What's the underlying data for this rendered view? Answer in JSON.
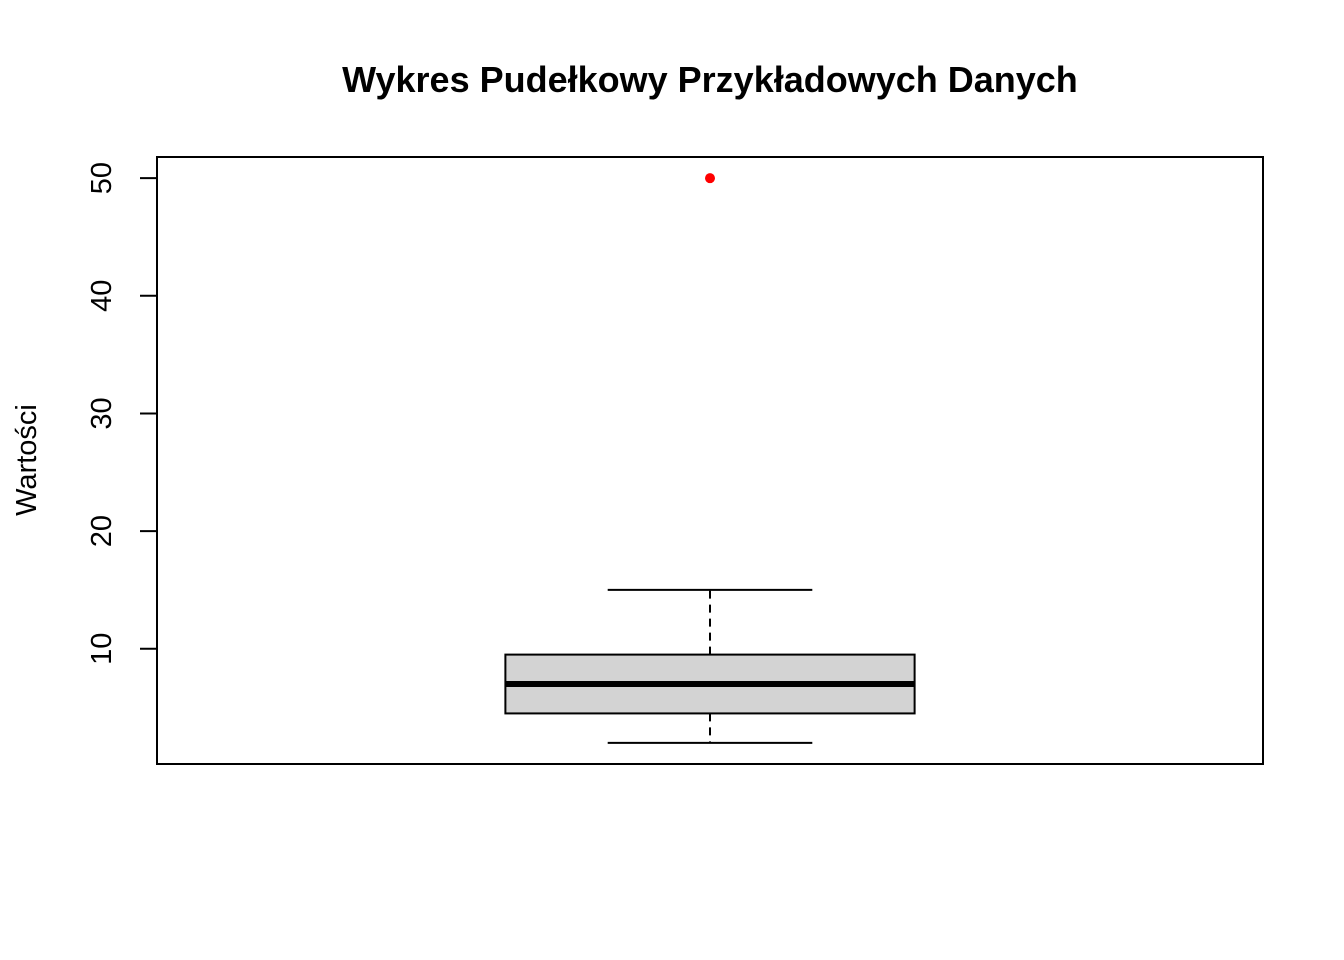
{
  "chart_data": {
    "type": "boxplot",
    "title": "Wykres Pudełkowy Przykładowych Danych",
    "xlabel": "",
    "ylabel": "Wartości",
    "ylim": [
      0.2,
      51.8
    ],
    "yticks": [
      10,
      20,
      30,
      40,
      50
    ],
    "ytick_labels": [
      "10",
      "20",
      "30",
      "40",
      "50"
    ],
    "grid": false,
    "series": [
      {
        "min": 2,
        "q1": 4.5,
        "median": 7,
        "q3": 9.5,
        "max": 15,
        "outliers": [
          50
        ]
      }
    ],
    "colors": {
      "box_fill": "#d3d3d3",
      "outlier": "#ff0000",
      "line": "#000000"
    }
  }
}
